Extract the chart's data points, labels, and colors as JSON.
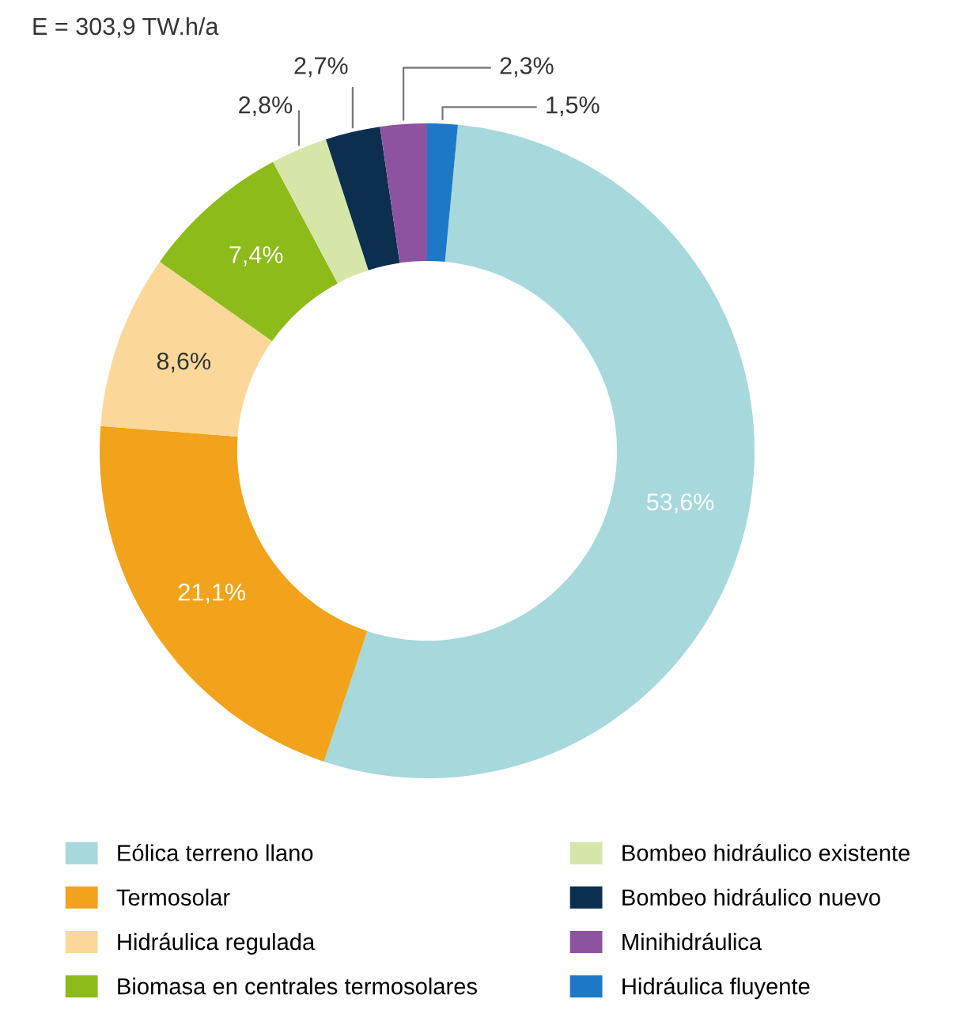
{
  "chart_data": {
    "type": "donut",
    "title": "E = 303,9 TW.h/a",
    "categories": [
      "Eólica terreno llano",
      "Termosolar",
      "Hidráulica regulada",
      "Biomasa en centrales termosolares",
      "Bombeo hidráulico existente",
      "Bombeo hidráulico nuevo",
      "Minihidráulica",
      "Hidráulica fluyente"
    ],
    "values": [
      53.6,
      21.1,
      8.6,
      7.4,
      2.8,
      2.7,
      2.3,
      1.5
    ],
    "colors": [
      "#a6d8dc",
      "#f2a31b",
      "#fbd89a",
      "#8cbb1a",
      "#d6e6a8",
      "#0d2f4f",
      "#8e53a0",
      "#1e78c8"
    ],
    "value_labels": [
      "53,6%",
      "21,1%",
      "8,6%",
      "7,4%",
      "2,8%",
      "2,7%",
      "2,3%",
      "1,5%"
    ],
    "legend": "bottom"
  }
}
